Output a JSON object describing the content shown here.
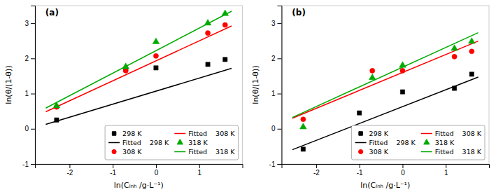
{
  "chart_data": [
    {
      "type": "scatter",
      "title": "(a)",
      "x_label": "ln(Cᵢₙₕ /g·L⁻¹)",
      "y_label": "ln(θ/(1-θ))",
      "xlim": [
        -2.8,
        2.0
      ],
      "ylim": [
        -1.0,
        3.5
      ],
      "xticks": [
        -2,
        -1,
        0,
        1
      ],
      "yticks": [
        -1,
        0,
        1,
        2,
        3
      ],
      "grid": false,
      "legend": "lower right",
      "series": [
        {
          "name": "298 K",
          "type": "scatter",
          "marker": "square",
          "color": "#000000",
          "x": [
            -2.3,
            -0.7,
            0.0,
            1.2,
            1.6
          ],
          "values": [
            0.25,
            1.7,
            1.73,
            1.83,
            1.97
          ]
        },
        {
          "name": "Fitted    298 K",
          "type": "line",
          "line_style": "solid",
          "color": "#000000",
          "x": [
            -2.55,
            1.75
          ],
          "values": [
            0.1265,
            1.7175
          ]
        },
        {
          "name": "308 K",
          "type": "scatter",
          "marker": "circle",
          "color": "#ff0000",
          "x": [
            -2.3,
            -0.7,
            0.0,
            1.2,
            1.6
          ],
          "values": [
            0.62,
            1.65,
            2.07,
            2.72,
            2.95
          ]
        },
        {
          "name": "Fitted    308 K",
          "type": "line",
          "line_style": "solid",
          "color": "#ff0000",
          "x": [
            -2.55,
            1.75
          ],
          "values": [
            0.48415,
            2.92225
          ]
        },
        {
          "name": "318 K",
          "type": "scatter",
          "marker": "triangle",
          "color": "#00aa00",
          "x": [
            -2.3,
            -0.7,
            0.0,
            1.2,
            1.6
          ],
          "values": [
            0.65,
            1.76,
            2.47,
            3.0,
            3.27
          ]
        },
        {
          "name": "Fitted    318 K",
          "type": "line",
          "line_style": "solid",
          "color": "#00aa00",
          "x": [
            -2.55,
            1.75
          ],
          "values": [
            0.588,
            3.34
          ]
        }
      ]
    },
    {
      "type": "scatter",
      "title": "(b)",
      "x_label": "ln(Cᵢₙₕ /g·L⁻¹)",
      "y_label": "ln(θ/(1-θ))",
      "xlim": [
        -2.8,
        2.0
      ],
      "ylim": [
        -1.0,
        3.5
      ],
      "xticks": [
        -2,
        -1,
        0,
        1
      ],
      "yticks": [
        -1,
        0,
        1,
        2,
        3
      ],
      "grid": false,
      "legend": "lower right",
      "series": [
        {
          "name": "298 K",
          "type": "scatter",
          "marker": "square",
          "color": "#000000",
          "x": [
            -2.3,
            -1.0,
            0.0,
            1.2,
            1.6
          ],
          "values": [
            -0.58,
            0.45,
            1.05,
            1.15,
            1.55
          ]
        },
        {
          "name": "Fitted    298 K",
          "type": "line",
          "line_style": "solid",
          "color": "#000000",
          "x": [
            -2.55,
            1.75
          ],
          "values": [
            -0.594,
            1.47
          ]
        },
        {
          "name": "308 K",
          "type": "scatter",
          "marker": "circle",
          "color": "#ff0000",
          "x": [
            -2.3,
            -0.7,
            0.0,
            1.2,
            1.6
          ],
          "values": [
            0.27,
            1.65,
            1.65,
            2.05,
            2.2
          ]
        },
        {
          "name": "Fitted    308 K",
          "type": "line",
          "line_style": "solid",
          "color": "#ff0000",
          "x": [
            -2.55,
            1.75
          ],
          "values": [
            0.2995,
            2.4925
          ]
        },
        {
          "name": "318 K",
          "type": "scatter",
          "marker": "triangle",
          "color": "#00aa00",
          "x": [
            -2.3,
            -0.7,
            0.0,
            1.2,
            1.6
          ],
          "values": [
            0.05,
            1.45,
            1.8,
            2.28,
            2.48
          ]
        },
        {
          "name": "Fitted    318 K",
          "type": "line",
          "line_style": "solid",
          "color": "#00aa00",
          "x": [
            -2.55,
            1.75
          ],
          "values": [
            0.322,
            2.73
          ]
        }
      ]
    }
  ]
}
